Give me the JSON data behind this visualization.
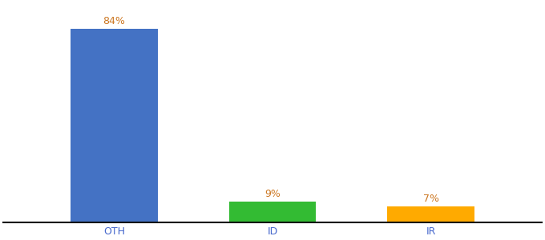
{
  "categories": [
    "OTH",
    "ID",
    "IR"
  ],
  "values": [
    84,
    9,
    7
  ],
  "labels": [
    "84%",
    "9%",
    "7%"
  ],
  "bar_colors": [
    "#4472c4",
    "#33bb33",
    "#ffaa00"
  ],
  "background_color": "#ffffff",
  "ylim": [
    0,
    95
  ],
  "bar_width": 0.55,
  "label_fontsize": 9,
  "tick_fontsize": 9,
  "label_color": "#cc7722",
  "tick_color": "#4466cc",
  "spine_color": "#111111"
}
